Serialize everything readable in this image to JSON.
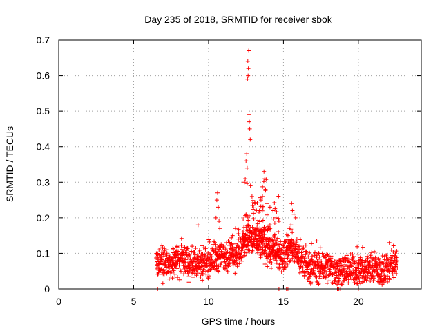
{
  "chart_data": {
    "type": "scatter",
    "title": "Day 235 of 2018, SRMTID for receiver sbok",
    "xlabel": "GPS time / hours",
    "ylabel": "SRMTID / TECUs",
    "xlim": [
      0,
      24.2
    ],
    "ylim": [
      0,
      0.7
    ],
    "x_ticks": [
      0,
      5,
      10,
      15,
      20
    ],
    "x_tick_labels": [
      "0",
      "5",
      "10",
      "15",
      "20"
    ],
    "y_ticks": [
      0,
      0.1,
      0.2,
      0.3,
      0.4,
      0.5,
      0.6,
      0.7
    ],
    "y_tick_labels": [
      "0",
      "0.1",
      "0.2",
      "0.3",
      "0.4",
      "0.5",
      "0.6",
      "0.7"
    ],
    "grid": true,
    "marker": "+",
    "series": [
      {
        "name": "SRMTID",
        "color": "#ff0000",
        "x_range": [
          6.5,
          22.6
        ],
        "profile": [
          [
            6.5,
            0.06
          ],
          [
            7.0,
            0.07
          ],
          [
            7.5,
            0.075
          ],
          [
            8.0,
            0.08
          ],
          [
            8.5,
            0.075
          ],
          [
            9.0,
            0.07
          ],
          [
            9.5,
            0.075
          ],
          [
            10.0,
            0.08
          ],
          [
            10.5,
            0.09
          ],
          [
            11.0,
            0.09
          ],
          [
            11.5,
            0.095
          ],
          [
            12.0,
            0.1
          ],
          [
            12.5,
            0.13
          ],
          [
            13.0,
            0.14
          ],
          [
            13.5,
            0.13
          ],
          [
            14.0,
            0.11
          ],
          [
            14.5,
            0.09
          ],
          [
            15.0,
            0.09
          ],
          [
            15.5,
            0.12
          ],
          [
            16.0,
            0.09
          ],
          [
            16.5,
            0.07
          ],
          [
            17.0,
            0.065
          ],
          [
            17.5,
            0.06
          ],
          [
            18.0,
            0.06
          ],
          [
            18.5,
            0.055
          ],
          [
            19.0,
            0.05
          ],
          [
            19.5,
            0.055
          ],
          [
            20.0,
            0.055
          ],
          [
            20.5,
            0.055
          ],
          [
            21.0,
            0.06
          ],
          [
            21.5,
            0.05
          ],
          [
            22.0,
            0.06
          ],
          [
            22.5,
            0.08
          ]
        ],
        "peaks": [
          [
            12.68,
            0.67
          ],
          [
            12.62,
            0.64
          ],
          [
            12.66,
            0.62
          ],
          [
            12.64,
            0.6
          ],
          [
            12.6,
            0.59
          ],
          [
            12.7,
            0.49
          ],
          [
            12.72,
            0.47
          ],
          [
            12.75,
            0.45
          ],
          [
            12.78,
            0.42
          ],
          [
            12.55,
            0.38
          ],
          [
            12.5,
            0.36
          ],
          [
            12.58,
            0.34
          ],
          [
            12.45,
            0.31
          ],
          [
            12.4,
            0.3
          ],
          [
            12.8,
            0.29
          ],
          [
            12.9,
            0.26
          ],
          [
            13.1,
            0.24
          ],
          [
            13.4,
            0.22
          ],
          [
            13.7,
            0.33
          ],
          [
            13.75,
            0.31
          ],
          [
            13.8,
            0.28
          ],
          [
            13.6,
            0.26
          ],
          [
            13.5,
            0.25
          ],
          [
            13.9,
            0.24
          ],
          [
            14.1,
            0.23
          ],
          [
            14.3,
            0.22
          ],
          [
            14.5,
            0.2
          ],
          [
            14.7,
            0.19
          ],
          [
            14.1,
            0.18
          ],
          [
            14.0,
            0.17
          ],
          [
            10.6,
            0.27
          ],
          [
            10.55,
            0.25
          ],
          [
            10.65,
            0.23
          ],
          [
            10.5,
            0.2
          ],
          [
            10.7,
            0.19
          ],
          [
            10.75,
            0.17
          ],
          [
            9.3,
            0.18
          ],
          [
            11.8,
            0.17
          ],
          [
            11.6,
            0.15
          ],
          [
            12.3,
            0.16
          ],
          [
            15.55,
            0.24
          ],
          [
            15.6,
            0.22
          ],
          [
            15.7,
            0.21
          ],
          [
            15.8,
            0.2
          ],
          [
            15.5,
            0.18
          ],
          [
            15.4,
            0.17
          ],
          [
            15.3,
            0.15
          ],
          [
            15.9,
            0.14
          ],
          [
            16.1,
            0.12
          ],
          [
            12.0,
            0.14
          ],
          [
            11.2,
            0.13
          ],
          [
            11.0,
            0.12
          ],
          [
            8.9,
            0.12
          ],
          [
            7.9,
            0.12
          ]
        ],
        "zeros": [
          6.6,
          14.7,
          15.2,
          15.3,
          18.6,
          18.7,
          18.8,
          20.0
        ]
      }
    ]
  }
}
